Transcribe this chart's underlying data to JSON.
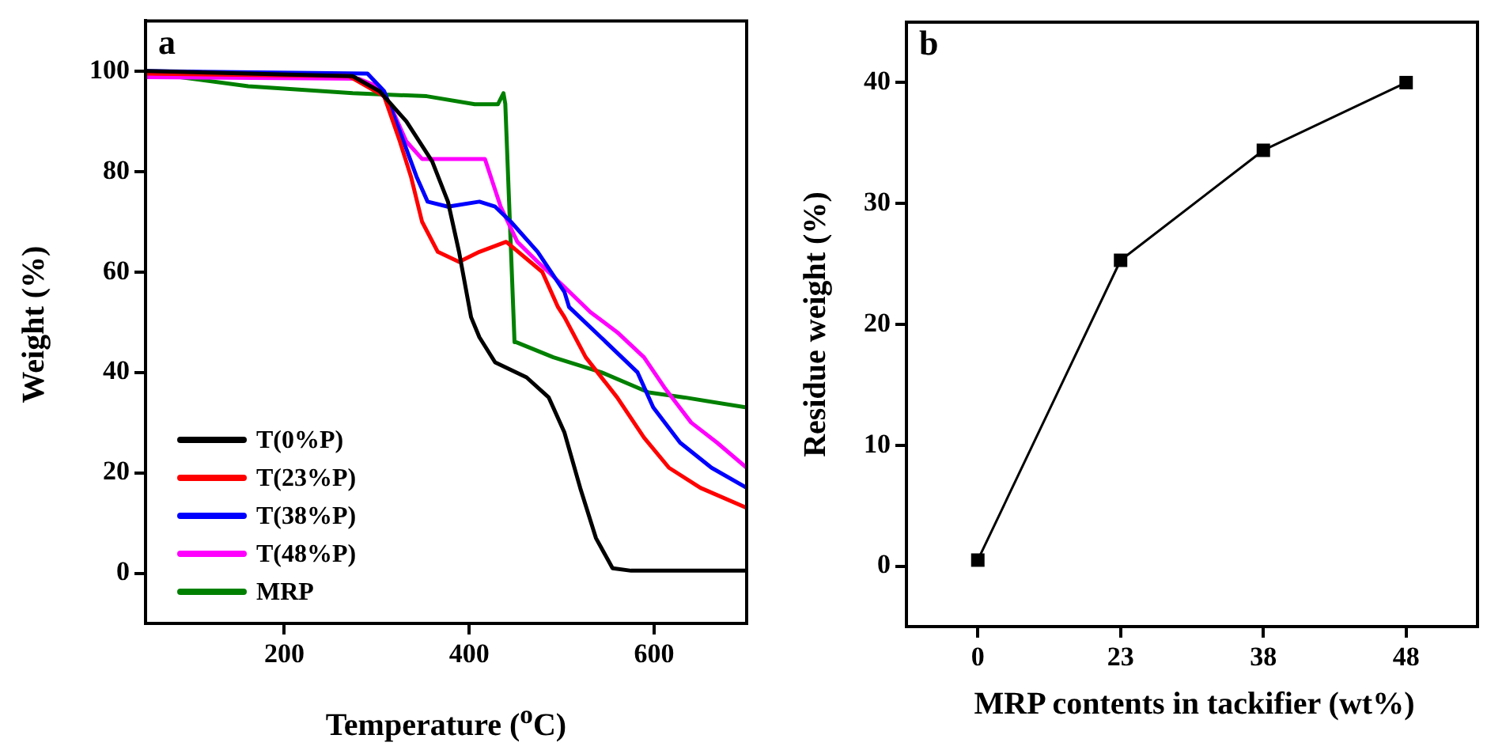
{
  "chart_data": [
    {
      "type": "line",
      "xlabel": "Temperature ($^{o}$C)",
      "ylabel": "Weight (%)",
      "annotations": [
        "a"
      ],
      "xlim": [
        50,
        700
      ],
      "xticks": [
        200,
        400,
        600
      ],
      "ylim": [
        -10,
        110
      ],
      "yticks": [
        0,
        20,
        40,
        60,
        80,
        100
      ],
      "legend": "bottom left",
      "marker": "none",
      "grid": false,
      "series": [
        {
          "name": "T(0%P)",
          "color": "#000000",
          "x": [
            50,
            274,
            303,
            332,
            360,
            377,
            389,
            402,
            411,
            428,
            462,
            486,
            503,
            520,
            537,
            555,
            575,
            700
          ],
          "values": [
            100,
            99,
            96,
            90,
            82,
            74,
            64,
            51,
            47,
            42,
            39,
            35,
            28,
            17,
            7,
            1,
            0.5,
            0.5
          ]
        },
        {
          "name": "T(23%P)",
          "color": "#ff0000",
          "x": [
            50,
            270,
            308,
            325,
            337,
            349,
            366,
            389,
            411,
            440,
            479,
            496,
            503,
            526,
            560,
            589,
            616,
            650,
            700
          ],
          "values": [
            99.5,
            99,
            95,
            86,
            79,
            70,
            64,
            62,
            64,
            66,
            60,
            53,
            51,
            43,
            35,
            27,
            21,
            17,
            13
          ]
        },
        {
          "name": "T(38%P)",
          "color": "#0000ff",
          "x": [
            50,
            290,
            308,
            325,
            343,
            355,
            377,
            411,
            428,
            445,
            474,
            503,
            508,
            548,
            582,
            599,
            628,
            662,
            700
          ],
          "values": [
            100,
            99.5,
            96,
            88,
            79,
            74,
            73,
            74,
            73,
            70,
            64,
            56,
            53,
            46,
            40,
            33,
            26,
            21,
            17
          ]
        },
        {
          "name": "T(48%P)",
          "color": "#ff00ff",
          "x": [
            50,
            280,
            300,
            315,
            332,
            349,
            380,
            417,
            434,
            452,
            474,
            503,
            531,
            560,
            589,
            611,
            640,
            668,
            700
          ],
          "values": [
            98.8,
            98.5,
            97,
            93,
            86,
            82.5,
            82.5,
            82.5,
            73,
            66,
            62,
            57,
            52,
            48,
            43,
            37,
            30,
            26,
            21
          ]
        },
        {
          "name": "MRP",
          "color": "#008000",
          "x": [
            50,
            161,
            274,
            354,
            406,
            431,
            437,
            439,
            449,
            451,
            491,
            543,
            594,
            633,
            700
          ],
          "values": [
            99.7,
            97,
            95.6,
            95,
            93.4,
            93.4,
            95.6,
            93.5,
            46,
            46,
            43,
            40,
            36,
            35,
            33
          ]
        }
      ]
    },
    {
      "type": "line",
      "xlabel": "MRP contents in tackifier (wt%)",
      "ylabel": "Residue weight (%)",
      "annotations": [
        "b"
      ],
      "categories": [
        "0",
        "23",
        "38",
        "48"
      ],
      "values": [
        0.5,
        25.3,
        34.4,
        40.0
      ],
      "color": "#000000",
      "ylim": [
        -5,
        45
      ],
      "yticks": [
        0,
        10,
        20,
        30,
        40
      ],
      "marker": "square",
      "grid": false
    }
  ]
}
